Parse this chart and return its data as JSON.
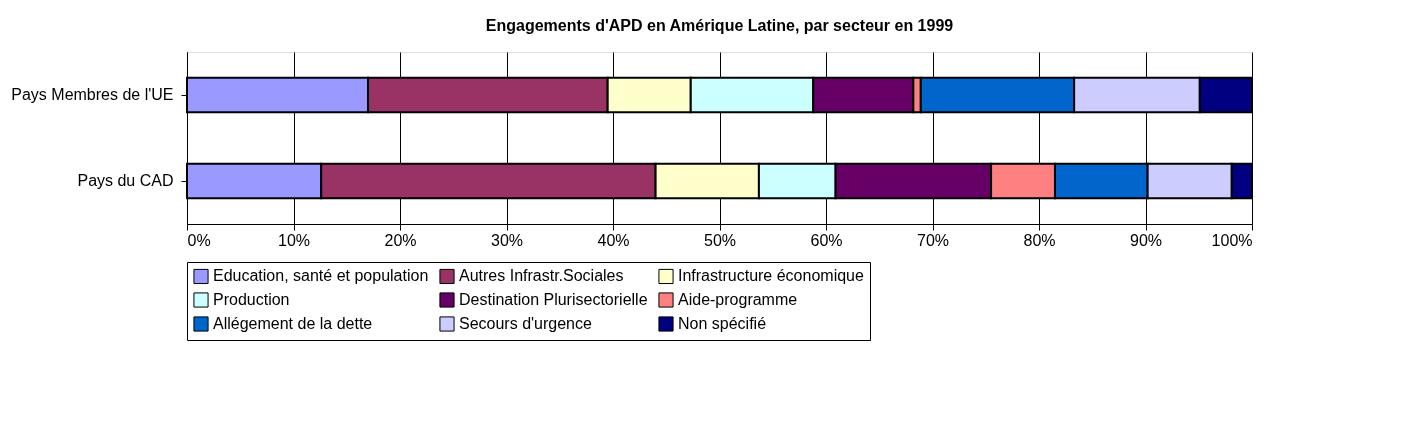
{
  "chart_data": {
    "type": "bar",
    "orientation": "horizontal",
    "stacked": true,
    "title": "Engagements d'APD en Amérique Latine, par secteur en 1999",
    "categories": [
      "Pays Membres de l'UE",
      "Pays du CAD"
    ],
    "series": [
      {
        "name": "Education, santé et population",
        "color": "#9999ff",
        "values": [
          17.0,
          12.6
        ]
      },
      {
        "name": "Autres Infrastr.Sociales",
        "color": "#993366",
        "values": [
          22.5,
          31.4
        ]
      },
      {
        "name": "Infrastructure économique",
        "color": "#ffffcc",
        "values": [
          7.8,
          9.7
        ]
      },
      {
        "name": "Production",
        "color": "#ccffff",
        "values": [
          11.5,
          7.2
        ]
      },
      {
        "name": "Destination Plurisectorielle",
        "color": "#660066",
        "values": [
          9.4,
          14.6
        ]
      },
      {
        "name": "Aide-programme",
        "color": "#ff8080",
        "values": [
          0.7,
          6.0
        ]
      },
      {
        "name": "Allégement de la dette",
        "color": "#0066cc",
        "values": [
          14.4,
          8.7
        ]
      },
      {
        "name": "Secours d'urgence",
        "color": "#ccccff",
        "values": [
          11.8,
          7.9
        ]
      },
      {
        "name": "Non spécifié",
        "color": "#000080",
        "values": [
          4.9,
          1.9
        ]
      }
    ],
    "xlim": [
      0,
      100
    ],
    "xticks": [
      {
        "value": 0,
        "label": "0%"
      },
      {
        "value": 10,
        "label": "10%"
      },
      {
        "value": 20,
        "label": "20%"
      },
      {
        "value": 30,
        "label": "30%"
      },
      {
        "value": 40,
        "label": "40%"
      },
      {
        "value": 50,
        "label": "50%"
      },
      {
        "value": 60,
        "label": "60%"
      },
      {
        "value": 70,
        "label": "70%"
      },
      {
        "value": 80,
        "label": "80%"
      },
      {
        "value": 90,
        "label": "90%"
      },
      {
        "value": 100,
        "label": "100%"
      }
    ],
    "grid": "x",
    "legend": "bottom"
  }
}
